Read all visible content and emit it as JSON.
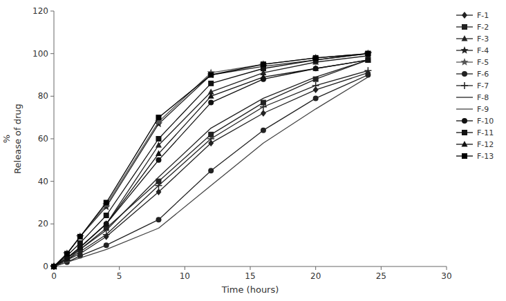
{
  "chart_data": {
    "type": "line",
    "x_label": "Time (hours)",
    "y_label": "%\nRelease of drug",
    "xlim": [
      0,
      30
    ],
    "ylim": [
      0,
      120
    ],
    "xticks": [
      0,
      5,
      10,
      15,
      20,
      25,
      30
    ],
    "yticks": [
      0,
      20,
      40,
      60,
      80,
      100,
      120
    ],
    "grid": false,
    "legend": "right",
    "x": [
      0,
      1,
      2,
      4,
      8,
      12,
      16,
      20,
      24
    ],
    "series": [
      {
        "name": "F-1",
        "marker": "diamond",
        "color": "#222222",
        "values": [
          0,
          3,
          6,
          14,
          35,
          58,
          72,
          83,
          91
        ]
      },
      {
        "name": "F-2",
        "marker": "square",
        "color": "#222222",
        "values": [
          0,
          4,
          8,
          18,
          40,
          62,
          77,
          88,
          97
        ]
      },
      {
        "name": "F-3",
        "marker": "triangle",
        "color": "#222222",
        "values": [
          0,
          4,
          9,
          20,
          57,
          82,
          91,
          96,
          99
        ]
      },
      {
        "name": "F-4",
        "marker": "star",
        "color": "#222222",
        "values": [
          0,
          6,
          14,
          28,
          67,
          90,
          94,
          97,
          100
        ]
      },
      {
        "name": "F-5",
        "marker": "star",
        "color": "#555555",
        "values": [
          0,
          6,
          14,
          29,
          68,
          91,
          95,
          98,
          100
        ]
      },
      {
        "name": "F-6",
        "marker": "circle",
        "color": "#222222",
        "values": [
          0,
          2,
          5,
          10,
          22,
          45,
          64,
          79,
          90
        ]
      },
      {
        "name": "F-7",
        "marker": "plus",
        "color": "#222222",
        "values": [
          0,
          3,
          7,
          15,
          38,
          60,
          75,
          85,
          92
        ]
      },
      {
        "name": "F-8",
        "marker": "none",
        "color": "#222222",
        "values": [
          0,
          3,
          8,
          17,
          42,
          65,
          79,
          89,
          97
        ]
      },
      {
        "name": "F-9",
        "marker": "none",
        "color": "#444444",
        "values": [
          0,
          2,
          4,
          8,
          18,
          38,
          58,
          74,
          89
        ]
      },
      {
        "name": "F-10",
        "marker": "circle",
        "color": "#111111",
        "values": [
          0,
          4,
          9,
          20,
          50,
          77,
          88,
          93,
          97
        ]
      },
      {
        "name": "F-11",
        "marker": "square",
        "color": "#111111",
        "values": [
          0,
          5,
          11,
          24,
          60,
          86,
          93,
          97,
          100
        ]
      },
      {
        "name": "F-12",
        "marker": "triangle",
        "color": "#111111",
        "values": [
          0,
          4,
          9,
          20,
          53,
          80,
          89,
          93,
          97
        ]
      },
      {
        "name": "F-13",
        "marker": "square",
        "color": "#000000",
        "values": [
          0,
          6,
          14,
          30,
          70,
          90,
          95,
          98,
          100
        ]
      }
    ]
  }
}
